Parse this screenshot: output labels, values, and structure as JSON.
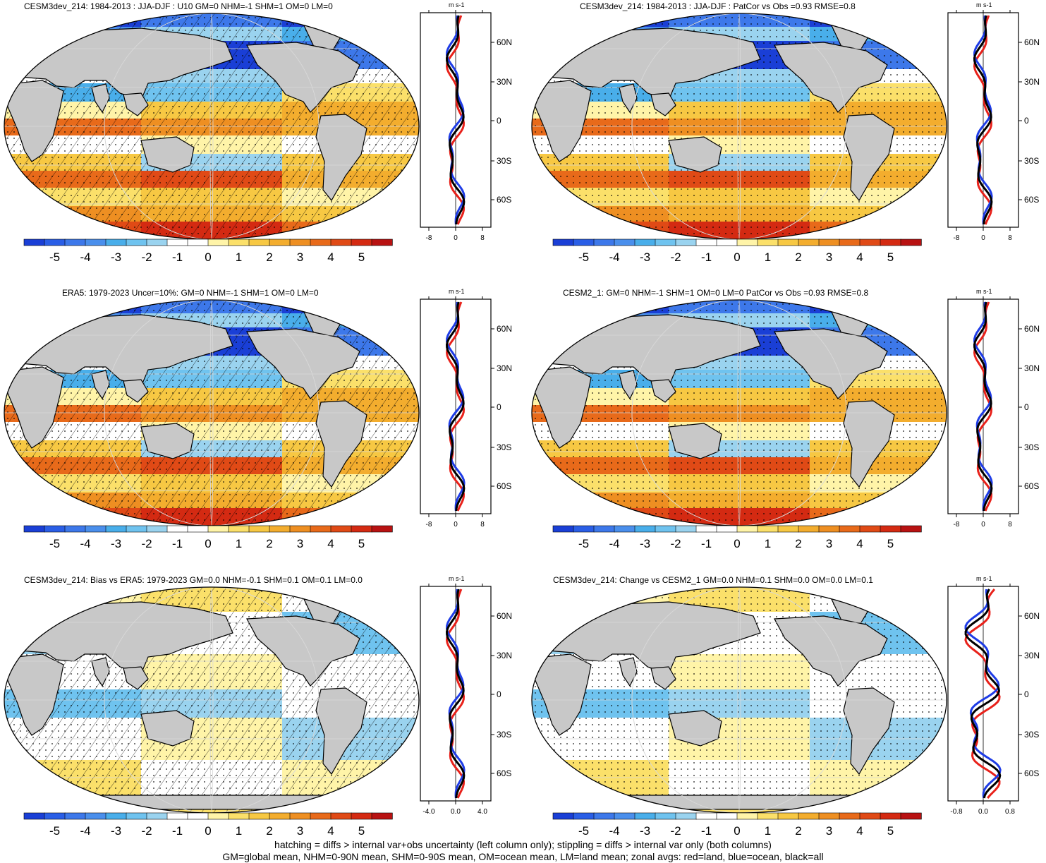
{
  "colorbar": {
    "colors": [
      "#1a3fd6",
      "#2a5ee6",
      "#3d78ea",
      "#4a8fec",
      "#49aeea",
      "#6fc3ef",
      "#9ad3ef",
      "#ffffff",
      "#ffffff",
      "#fff4a8",
      "#fbe06a",
      "#f7c843",
      "#f3ad2e",
      "#ee8f22",
      "#e86a1a",
      "#e04a16",
      "#d42a12",
      "#b81212"
    ],
    "tick_labels": [
      "-5",
      "-4",
      "-3",
      "-2",
      "-1",
      "0",
      "1",
      "2",
      "3",
      "4",
      "5"
    ]
  },
  "panels": [
    {
      "title": "CESM3dev_214: 1984-2013 : JJA-DJF : U10 GM=0 NHM=-1 SHM=1 OM=0 LM=0",
      "hatched": true,
      "x_ticks": [
        "-8",
        "0",
        "8"
      ],
      "units": "m s-1",
      "lat_labels": [
        "60N",
        "30N",
        "0",
        "30S",
        "60S"
      ]
    },
    {
      "title": "CESM3dev_214: 1984-2013 : JJA-DJF : PatCor vs Obs =0.93 RMSE=0.8",
      "hatched": false,
      "x_ticks": [
        "-8",
        "0",
        "8"
      ],
      "units": "m s-1",
      "lat_labels": [
        "60N",
        "30N",
        "0",
        "30S",
        "60S"
      ]
    },
    {
      "title": "ERA5: 1979-2023 Uncer=10%: GM=0 NHM=-1 SHM=1 OM=0 LM=0",
      "hatched": true,
      "x_ticks": [
        "-8",
        "0",
        "8"
      ],
      "units": "m s-1",
      "lat_labels": [
        "60N",
        "30N",
        "0",
        "30S",
        "60S"
      ]
    },
    {
      "title": "CESM2_1: GM=0 NHM=-1 SHM=1 OM=0 LM=0 PatCor vs Obs =0.93 RMSE=0.8",
      "hatched": false,
      "x_ticks": [
        "-8",
        "0",
        "8"
      ],
      "units": "m s-1",
      "lat_labels": [
        "60N",
        "30N",
        "0",
        "30S",
        "60S"
      ]
    },
    {
      "title": "CESM3dev_214: Bias vs ERA5: 1979-2023 GM=0.0 NHM=-0.1 SHM=0.1 OM=0.1 LM=0.0",
      "hatched": true,
      "x_ticks": [
        "-4.0",
        "0.0",
        "4.0"
      ],
      "units": "m s-1",
      "lat_labels": [
        "60N",
        "30N",
        "0",
        "30S",
        "60S"
      ]
    },
    {
      "title": "CESM3dev_214: Change vs CESM2_1 GM=0.0 NHM=0.1 SHM=0.0 OM=0.0 LM=0.1",
      "hatched": false,
      "x_ticks": [
        "-0.8",
        "0.0",
        "0.8"
      ],
      "units": "m s-1",
      "lat_labels": [
        "60N",
        "30N",
        "0",
        "30S",
        "60S"
      ]
    }
  ],
  "footer": {
    "line1": "hatching = diffs > internal var+obs uncertainty (left column only); stippling = diffs > internal var only (both columns)",
    "line2": "GM=global mean, NHM=0-90N mean, SHM=0-90S mean, OM=ocean mean, LM=land mean; zonal avgs: red=land, blue=ocean, black=all"
  }
}
